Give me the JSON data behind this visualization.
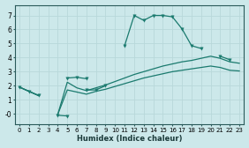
{
  "xlabel": "Humidex (Indice chaleur)",
  "background_color": "#cce8ea",
  "line_color": "#1a7a6e",
  "grid_color": "#b8d8da",
  "xlim": [
    -0.5,
    23.5
  ],
  "ylim": [
    -0.75,
    7.75
  ],
  "xticks": [
    0,
    1,
    2,
    3,
    4,
    5,
    6,
    7,
    8,
    9,
    10,
    11,
    12,
    13,
    14,
    15,
    16,
    17,
    18,
    19,
    20,
    21,
    22,
    23
  ],
  "yticks": [
    0,
    1,
    2,
    3,
    4,
    5,
    6,
    7
  ],
  "ytick_labels": [
    "-0",
    "1",
    "2",
    "3",
    "4",
    "5",
    "6",
    "7"
  ],
  "line1_x": [
    0,
    1,
    2,
    4,
    5,
    5,
    6,
    7,
    7,
    8,
    9,
    11,
    12,
    13,
    14,
    15,
    16,
    17,
    18,
    19,
    21,
    22
  ],
  "line1_y": [
    1.9,
    1.6,
    1.3,
    -0.1,
    -0.15,
    2.55,
    2.6,
    2.5,
    1.7,
    1.7,
    2.0,
    4.85,
    7.0,
    6.65,
    7.0,
    7.0,
    6.9,
    6.05,
    4.85,
    4.65,
    4.1,
    3.85
  ],
  "line1_connected": [
    true,
    true,
    true,
    false,
    true,
    false,
    true,
    true,
    false,
    true,
    true,
    false,
    true,
    true,
    true,
    true,
    true,
    true,
    true,
    true,
    false,
    true
  ],
  "line2_x": [
    0,
    1,
    2,
    4,
    5,
    6,
    7,
    8,
    9,
    10,
    11,
    12,
    13,
    14,
    15,
    16,
    17,
    18,
    19,
    20,
    21,
    22,
    23
  ],
  "line2_y": [
    1.9,
    1.6,
    1.3,
    -0.05,
    2.25,
    1.85,
    1.65,
    1.85,
    2.05,
    2.3,
    2.55,
    2.8,
    3.0,
    3.2,
    3.4,
    3.55,
    3.7,
    3.8,
    3.95,
    4.1,
    3.95,
    3.7,
    3.6
  ],
  "line3_x": [
    0,
    1,
    2,
    4,
    5,
    6,
    7,
    8,
    9,
    10,
    11,
    12,
    13,
    14,
    15,
    16,
    17,
    18,
    19,
    20,
    21,
    22,
    23
  ],
  "line3_y": [
    1.9,
    1.6,
    1.3,
    -0.05,
    1.7,
    1.55,
    1.4,
    1.6,
    1.75,
    1.95,
    2.15,
    2.35,
    2.55,
    2.7,
    2.85,
    3.0,
    3.1,
    3.2,
    3.3,
    3.4,
    3.3,
    3.1,
    3.05
  ]
}
